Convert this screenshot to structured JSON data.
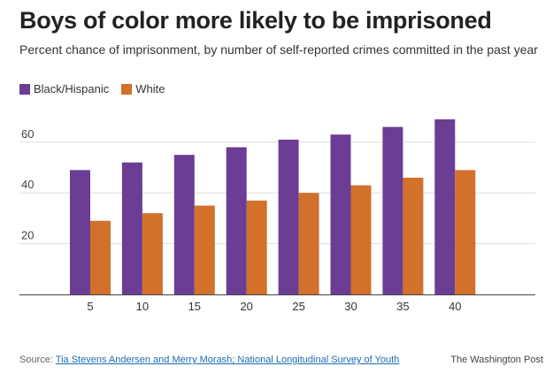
{
  "header": {
    "title": "Boys of color more likely to be imprisoned",
    "subtitle": "Percent chance of imprisonment, by number of self-reported crimes committed in the past year"
  },
  "colors": {
    "black_hispanic": "#6b3d94",
    "white": "#d3702b",
    "grid": "#dddddd",
    "axis": "#444444"
  },
  "chart_data": {
    "type": "bar",
    "title": "Boys of color more likely to be imprisoned",
    "subtitle": "Percent chance of imprisonment, by number of self-reported crimes committed in the past year",
    "categories": [
      "5",
      "10",
      "15",
      "20",
      "25",
      "30",
      "35",
      "40"
    ],
    "series": [
      {
        "name": "Black/Hispanic",
        "values": [
          49,
          52,
          55,
          58,
          61,
          63,
          66,
          69
        ]
      },
      {
        "name": "White",
        "values": [
          29,
          32,
          35,
          37,
          40,
          43,
          46,
          49
        ]
      }
    ],
    "xlabel": "",
    "ylabel": "",
    "ylim": [
      0,
      70
    ],
    "yticks": [
      20,
      40,
      60
    ],
    "grid": true,
    "legend": "top-left"
  },
  "footer": {
    "source_prefix": "Source: ",
    "source_link": "Tia Stevens Andersen and Merry Morash; National Longitudinal Survey of Youth",
    "brand": "The Washington Post"
  }
}
